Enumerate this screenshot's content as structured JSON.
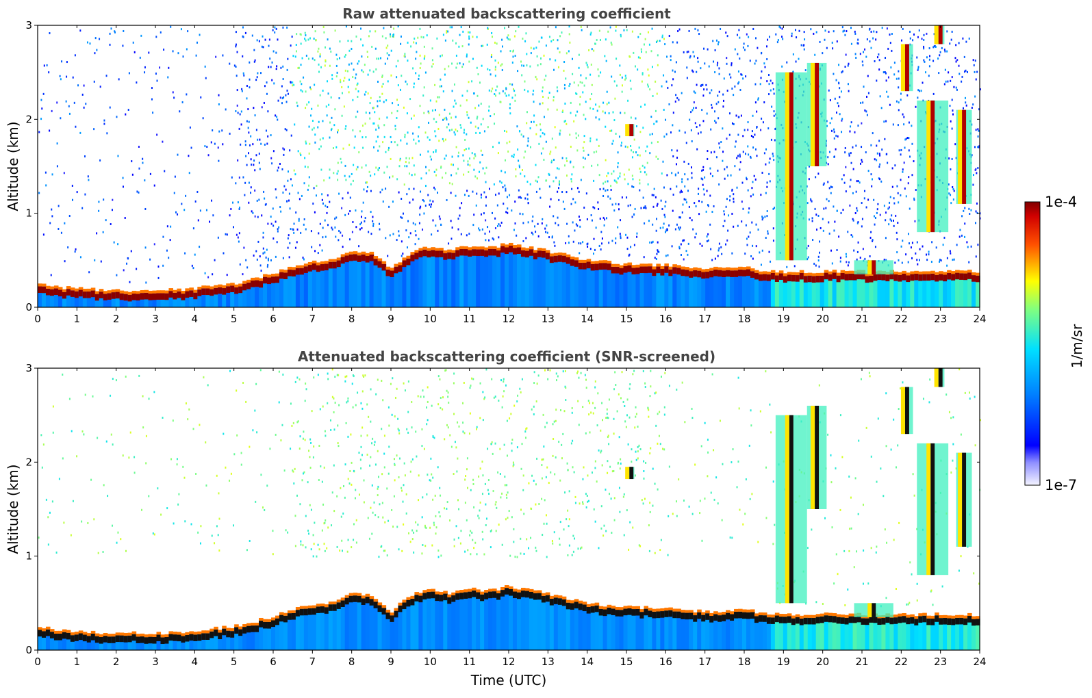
{
  "figure": {
    "colorbar": {
      "max_label": "1e-4",
      "min_label": "1e-7",
      "unit_label": "1/m/sr",
      "colormap": "jet",
      "scale": "log",
      "range": [
        1e-07,
        0.0001
      ]
    }
  },
  "chart_data": [
    {
      "type": "heatmap",
      "title": "Raw attenuated backscattering coefficient",
      "xlabel": "",
      "ylabel": "Altitude (km)",
      "xlim": [
        0,
        24
      ],
      "ylim": [
        0,
        3
      ],
      "x_ticks": [
        "0",
        "1",
        "2",
        "3",
        "4",
        "5",
        "6",
        "7",
        "8",
        "9",
        "10",
        "11",
        "12",
        "13",
        "14",
        "15",
        "16",
        "17",
        "18",
        "19",
        "20",
        "21",
        "22",
        "23",
        "24"
      ],
      "y_ticks": [
        "0",
        "1",
        "2",
        "3"
      ],
      "screened": false,
      "boundary_layer_top": {
        "time": [
          0,
          0.3,
          0.6,
          1,
          2,
          3,
          4,
          4.5,
          5,
          5.5,
          6,
          6.5,
          7,
          7.5,
          8,
          8.5,
          9,
          9.5,
          10,
          10.5,
          11,
          11.5,
          12,
          13,
          14,
          15,
          16,
          17,
          18,
          18.7
        ],
        "altitude_km": [
          0.22,
          0.2,
          0.18,
          0.17,
          0.15,
          0.15,
          0.17,
          0.2,
          0.22,
          0.27,
          0.33,
          0.4,
          0.45,
          0.48,
          0.58,
          0.55,
          0.38,
          0.55,
          0.62,
          0.58,
          0.62,
          0.6,
          0.65,
          0.57,
          0.47,
          0.43,
          0.42,
          0.38,
          0.4,
          0.35
        ]
      },
      "clouds": [
        {
          "time": [
            18.8,
            19.6
          ],
          "altitude_km": [
            0.5,
            2.5
          ]
        },
        {
          "time": [
            19.6,
            20.1
          ],
          "altitude_km": [
            1.5,
            2.6
          ]
        },
        {
          "time": [
            20.8,
            21.8
          ],
          "altitude_km": [
            0.35,
            0.5
          ]
        },
        {
          "time": [
            22.0,
            22.3
          ],
          "altitude_km": [
            2.3,
            2.8
          ]
        },
        {
          "time": [
            22.4,
            23.2
          ],
          "altitude_km": [
            0.8,
            2.2
          ]
        },
        {
          "time": [
            22.9,
            23.1
          ],
          "altitude_km": [
            2.8,
            3.0
          ]
        },
        {
          "time": [
            23.4,
            23.8
          ],
          "altitude_km": [
            1.1,
            2.1
          ]
        },
        {
          "time": [
            15.05,
            15.2
          ],
          "altitude_km": [
            1.82,
            1.95
          ]
        }
      ]
    },
    {
      "type": "heatmap",
      "title": "Attenuated backscattering coefficient (SNR-screened)",
      "xlabel": "Time (UTC)",
      "ylabel": "Altitude (km)",
      "xlim": [
        0,
        24
      ],
      "ylim": [
        0,
        3
      ],
      "x_ticks": [
        "0",
        "1",
        "2",
        "3",
        "4",
        "5",
        "6",
        "7",
        "8",
        "9",
        "10",
        "11",
        "12",
        "13",
        "14",
        "15",
        "16",
        "17",
        "18",
        "19",
        "20",
        "21",
        "22",
        "23",
        "24"
      ],
      "y_ticks": [
        "0",
        "1",
        "2",
        "3"
      ],
      "screened": true,
      "boundary_layer_top": {
        "time": [
          0,
          0.3,
          0.6,
          1,
          2,
          3,
          4,
          4.5,
          5,
          5.5,
          6,
          6.5,
          7,
          7.5,
          8,
          8.5,
          9,
          9.5,
          10,
          10.5,
          11,
          11.5,
          12,
          13,
          14,
          15,
          16,
          17,
          18,
          18.7
        ],
        "altitude_km": [
          0.22,
          0.2,
          0.18,
          0.17,
          0.15,
          0.15,
          0.17,
          0.2,
          0.22,
          0.27,
          0.33,
          0.4,
          0.45,
          0.48,
          0.58,
          0.55,
          0.38,
          0.55,
          0.62,
          0.58,
          0.62,
          0.6,
          0.65,
          0.57,
          0.47,
          0.43,
          0.42,
          0.38,
          0.4,
          0.35
        ]
      },
      "clouds": [
        {
          "time": [
            18.8,
            19.6
          ],
          "altitude_km": [
            0.5,
            2.5
          ]
        },
        {
          "time": [
            19.6,
            20.1
          ],
          "altitude_km": [
            1.5,
            2.6
          ]
        },
        {
          "time": [
            20.8,
            21.8
          ],
          "altitude_km": [
            0.35,
            0.5
          ]
        },
        {
          "time": [
            22.0,
            22.3
          ],
          "altitude_km": [
            2.3,
            2.8
          ]
        },
        {
          "time": [
            22.4,
            23.2
          ],
          "altitude_km": [
            0.8,
            2.2
          ]
        },
        {
          "time": [
            22.9,
            23.1
          ],
          "altitude_km": [
            2.8,
            3.0
          ]
        },
        {
          "time": [
            23.4,
            23.8
          ],
          "altitude_km": [
            1.1,
            2.1
          ]
        },
        {
          "time": [
            15.05,
            15.2
          ],
          "altitude_km": [
            1.82,
            1.95
          ]
        }
      ]
    }
  ]
}
